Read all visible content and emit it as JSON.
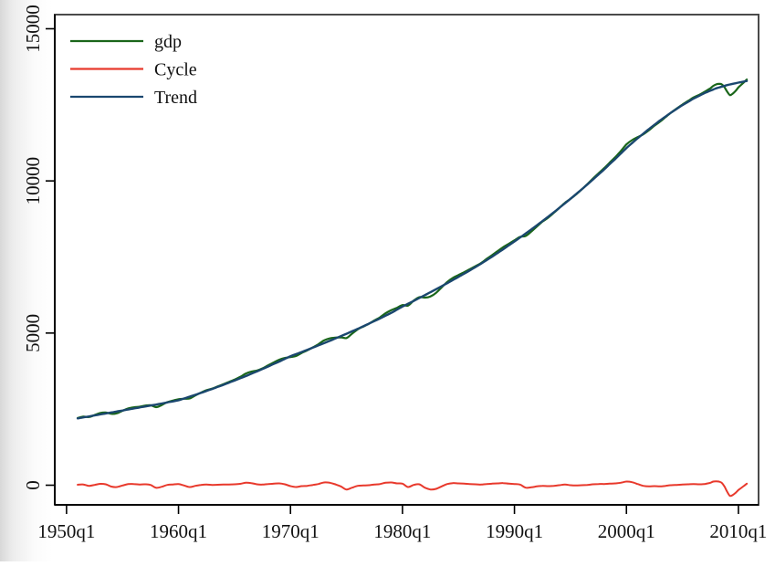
{
  "figure": {
    "description": "Stata-style time series graph of US real GDP with HP-filter trend and cycle",
    "background_color": "#ffffff",
    "frame_color": "#4a4a4a",
    "axis_color": "#000000",
    "text_color": "#111111"
  },
  "chart_data": {
    "type": "line",
    "title": "",
    "xlabel": "",
    "ylabel": "",
    "grid": false,
    "legend_position": "top-left",
    "xlim": [
      1948.95,
      2011.8
    ],
    "ylim": [
      -645,
      15465
    ],
    "x_ticks": [
      {
        "year": 1950,
        "label": "1950q1"
      },
      {
        "year": 1960,
        "label": "1960q1"
      },
      {
        "year": 1970,
        "label": "1970q1"
      },
      {
        "year": 1980,
        "label": "1980q1"
      },
      {
        "year": 1990,
        "label": "1990q1"
      },
      {
        "year": 2000,
        "label": "2000q1"
      },
      {
        "year": 2010,
        "label": "2010q1"
      }
    ],
    "y_ticks": [
      {
        "value": 0,
        "label": "0"
      },
      {
        "value": 5000,
        "label": "5000"
      },
      {
        "value": 10000,
        "label": "10000"
      },
      {
        "value": 15000,
        "label": "15000"
      }
    ],
    "legend": [
      {
        "label": "gdp",
        "color": "#1a661a"
      },
      {
        "label": "Cycle",
        "color": "#e8392c"
      },
      {
        "label": "Trend",
        "color": "#1a476f"
      }
    ],
    "x": [
      1951,
      1951.5,
      1952,
      1952.5,
      1953,
      1953.5,
      1954,
      1954.5,
      1955,
      1955.5,
      1956,
      1956.5,
      1957,
      1957.5,
      1958,
      1958.5,
      1959,
      1959.5,
      1960,
      1960.5,
      1961,
      1961.5,
      1962,
      1962.5,
      1963,
      1963.5,
      1964,
      1964.5,
      1965,
      1965.5,
      1966,
      1966.5,
      1967,
      1967.5,
      1968,
      1968.5,
      1969,
      1969.5,
      1970,
      1970.5,
      1971,
      1971.5,
      1972,
      1972.5,
      1973,
      1973.5,
      1974,
      1974.5,
      1975,
      1975.5,
      1976,
      1976.5,
      1977,
      1977.5,
      1978,
      1978.5,
      1979,
      1979.5,
      1980,
      1980.5,
      1981,
      1981.5,
      1982,
      1982.5,
      1983,
      1983.5,
      1984,
      1984.5,
      1985,
      1985.5,
      1986,
      1986.5,
      1987,
      1987.5,
      1988,
      1988.5,
      1989,
      1989.5,
      1990,
      1990.5,
      1991,
      1991.5,
      1992,
      1992.5,
      1993,
      1993.5,
      1994,
      1994.5,
      1995,
      1995.5,
      1996,
      1996.5,
      1997,
      1997.5,
      1998,
      1998.5,
      1999,
      1999.5,
      2000,
      2000.5,
      2001,
      2001.5,
      2002,
      2002.5,
      2003,
      2003.5,
      2004,
      2004.5,
      2005,
      2005.5,
      2006,
      2006.5,
      2007,
      2007.25,
      2007.5,
      2007.75,
      2008,
      2008.25,
      2008.5,
      2008.75,
      2009,
      2009.25,
      2009.5,
      2009.75,
      2010,
      2010.25,
      2010.5,
      2010.75
    ],
    "series": [
      {
        "name": "gdp",
        "color": "#1a661a",
        "width": 2.2,
        "values": [
          2210,
          2253,
          2240,
          2303,
          2370,
          2388,
          2345,
          2363,
          2445,
          2523,
          2560,
          2578,
          2615,
          2628,
          2565,
          2635,
          2730,
          2780,
          2825,
          2840,
          2849,
          2951,
          3043,
          3123,
          3173,
          3246,
          3318,
          3394,
          3469,
          3558,
          3666,
          3733,
          3769,
          3839,
          3939,
          4033,
          4126,
          4183,
          4210,
          4249,
          4348,
          4430,
          4531,
          4635,
          4758,
          4824,
          4850,
          4859,
          4837,
          4979,
          5120,
          5214,
          5308,
          5415,
          5521,
          5653,
          5755,
          5828,
          5920,
          5903,
          6065,
          6180,
          6165,
          6203,
          6320,
          6500,
          6680,
          6813,
          6905,
          7000,
          7095,
          7195,
          7295,
          7433,
          7560,
          7693,
          7825,
          7933,
          8050,
          8160,
          8190,
          8335,
          8500,
          8660,
          8790,
          8945,
          9110,
          9280,
          9410,
          9555,
          9720,
          9890,
          10070,
          10248,
          10415,
          10598,
          10780,
          10980,
          11200,
          11340,
          11440,
          11530,
          11660,
          11813,
          11945,
          12098,
          12250,
          12380,
          12510,
          12628,
          12745,
          12828,
          12930,
          12988,
          13045,
          13123,
          13170,
          13188,
          13175,
          13083,
          12930,
          12820,
          12870,
          12960,
          13070,
          13158,
          13245,
          13333
        ]
      },
      {
        "name": "Cycle",
        "color": "#e8392c",
        "width": 2.0,
        "values": [
          15,
          25,
          -20,
          10,
          45,
          30,
          -45,
          -60,
          -10,
          35,
          40,
          25,
          30,
          10,
          -85,
          -50,
          10,
          25,
          35,
          -10,
          -60,
          -20,
          10,
          25,
          10,
          15,
          20,
          25,
          30,
          45,
          80,
          70,
          30,
          20,
          40,
          50,
          60,
          30,
          -30,
          -60,
          -30,
          -20,
          10,
          40,
          90,
          80,
          30,
          -40,
          -140,
          -80,
          -20,
          -10,
          0,
          20,
          40,
          80,
          90,
          60,
          50,
          -60,
          10,
          30,
          -80,
          -140,
          -120,
          -40,
          40,
          70,
          60,
          50,
          40,
          30,
          20,
          40,
          50,
          60,
          70,
          50,
          40,
          20,
          -80,
          -70,
          -40,
          -20,
          -30,
          -20,
          0,
          20,
          0,
          -10,
          0,
          10,
          30,
          40,
          40,
          50,
          60,
          80,
          120,
          100,
          40,
          -20,
          -40,
          -30,
          -40,
          -20,
          0,
          10,
          20,
          30,
          40,
          30,
          40,
          60,
          80,
          120,
          130,
          120,
          80,
          -40,
          -220,
          -350,
          -320,
          -250,
          -160,
          -90,
          -20,
          50
        ]
      },
      {
        "name": "Trend",
        "color": "#1a476f",
        "width": 2.4,
        "values": [
          2195,
          2228,
          2260,
          2293,
          2325,
          2358,
          2390,
          2423,
          2455,
          2488,
          2520,
          2553,
          2585,
          2618,
          2650,
          2685,
          2720,
          2755,
          2790,
          2850,
          2909,
          2971,
          3033,
          3098,
          3163,
          3231,
          3298,
          3369,
          3439,
          3513,
          3586,
          3663,
          3739,
          3819,
          3899,
          3983,
          4066,
          4153,
          4240,
          4309,
          4378,
          4450,
          4521,
          4595,
          4668,
          4744,
          4820,
          4899,
          4977,
          5059,
          5140,
          5224,
          5308,
          5395,
          5481,
          5573,
          5665,
          5768,
          5870,
          5963,
          6055,
          6150,
          6245,
          6343,
          6440,
          6540,
          6640,
          6743,
          6845,
          6950,
          7055,
          7165,
          7275,
          7393,
          7510,
          7633,
          7755,
          7883,
          8010,
          8140,
          8270,
          8405,
          8540,
          8680,
          8820,
          8965,
          9110,
          9260,
          9410,
          9565,
          9720,
          9880,
          10040,
          10208,
          10375,
          10548,
          10720,
          10900,
          11080,
          11240,
          11400,
          11550,
          11700,
          11843,
          11985,
          12118,
          12250,
          12370,
          12490,
          12598,
          12705,
          12798,
          12890,
          12928,
          12965,
          13003,
          13040,
          13068,
          13095,
          13123,
          13150,
          13170,
          13190,
          13210,
          13230,
          13248,
          13265,
          13283
        ]
      }
    ]
  }
}
